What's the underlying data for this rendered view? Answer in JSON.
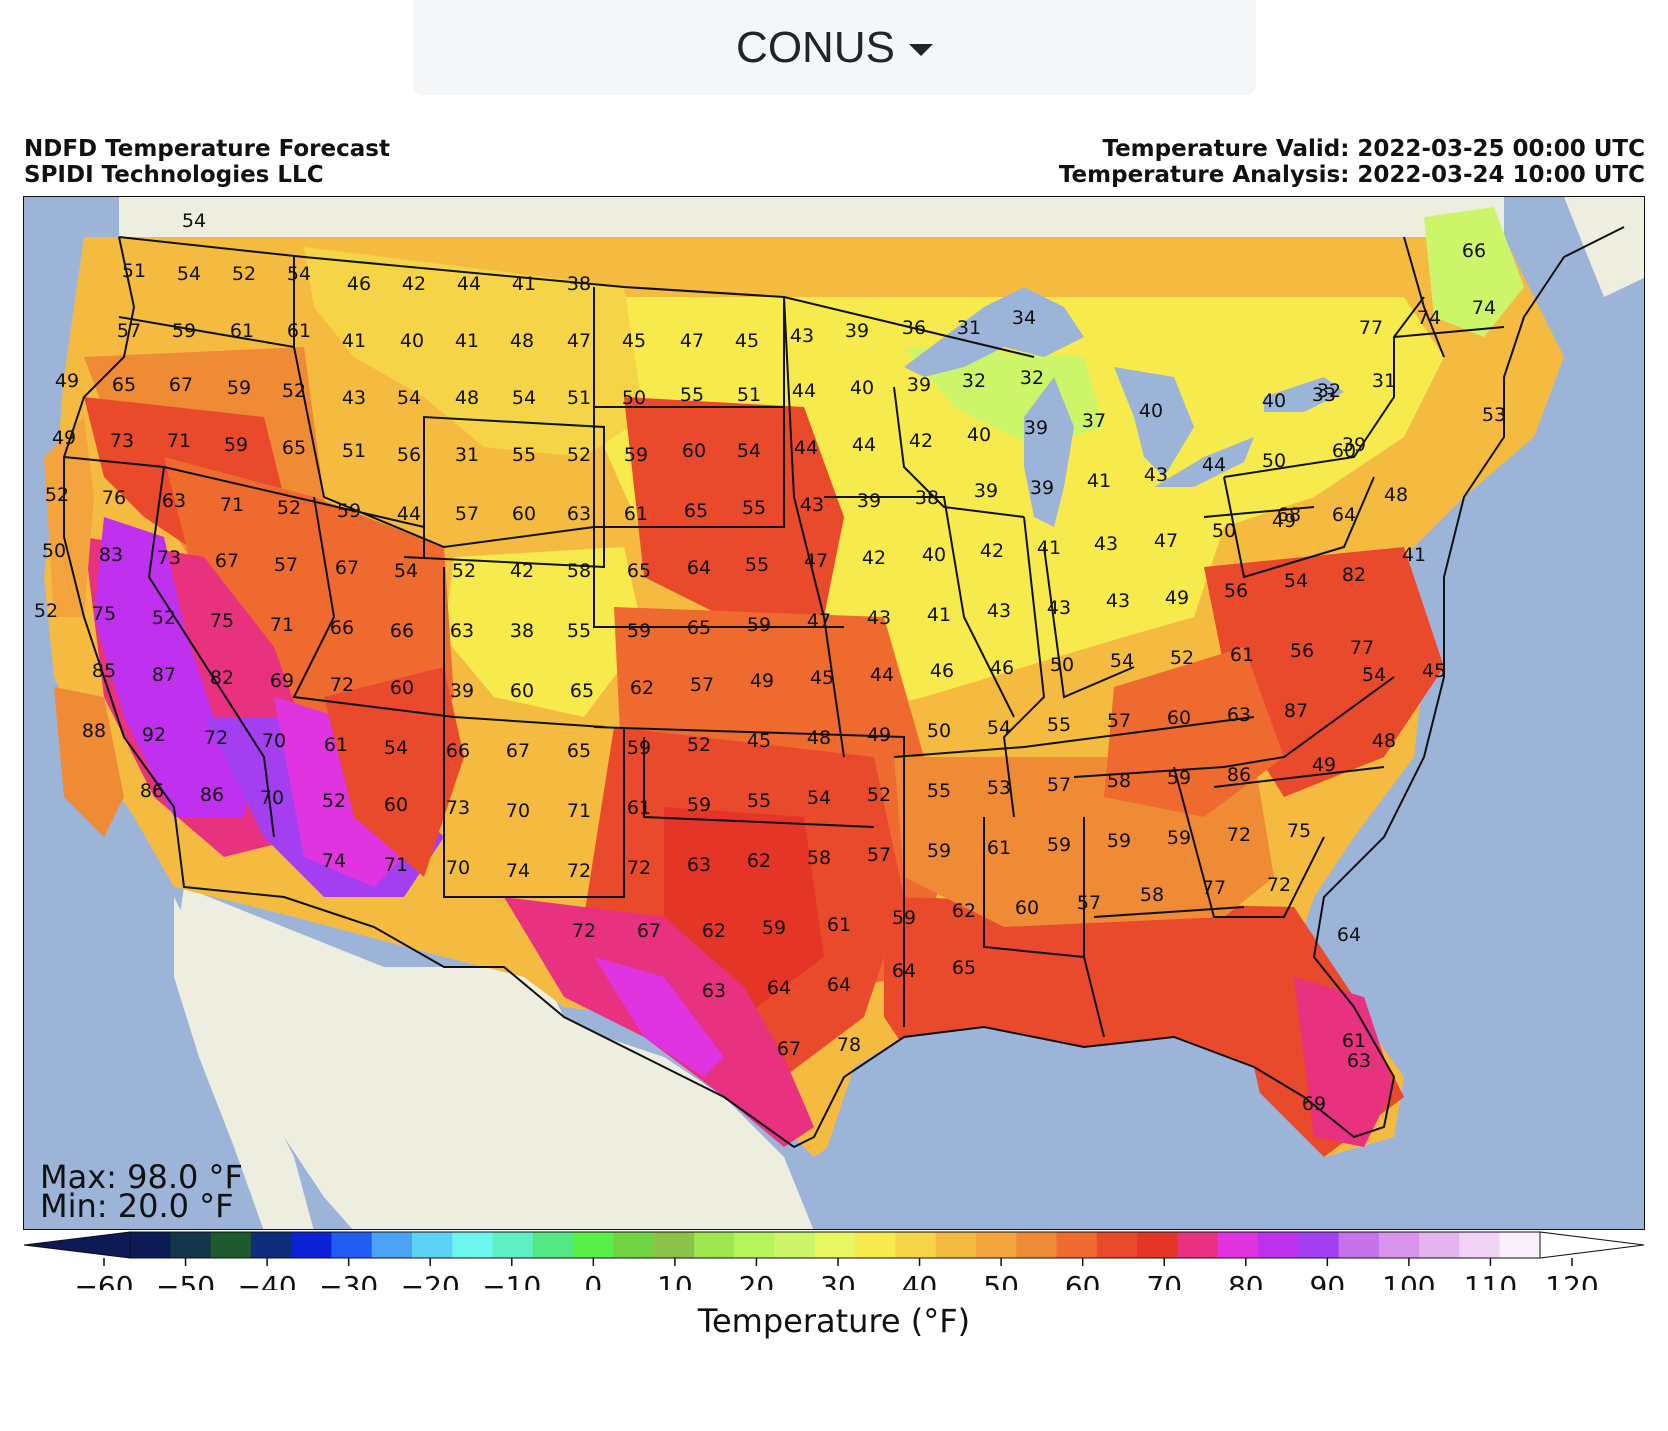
{
  "region_selector": {
    "value": "CONUS"
  },
  "header": {
    "title": "NDFD Temperature Forecast",
    "provider": "SPIDI Technologies LLC",
    "valid": "Temperature Valid: 2022-03-25 00:00 UTC",
    "analysis": "Temperature Analysis: 2022-03-24 10:00 UTC"
  },
  "stats": {
    "max": "Max: 98.0 °F",
    "min": "Min: 20.0 °F"
  },
  "colorbar": {
    "label": "Temperature (°F)",
    "ticks": [
      "−60",
      "−50",
      "−40",
      "−30",
      "−20",
      "−10",
      "0",
      "10",
      "20",
      "30",
      "40",
      "50",
      "60",
      "70",
      "80",
      "90",
      "100",
      "110",
      "120"
    ],
    "min_value": -60,
    "max_value": 120,
    "step": 5,
    "colors": [
      "#0c1a55",
      "#12354a",
      "#1d5a2e",
      "#0e2c7a",
      "#0b22d6",
      "#1f5df5",
      "#4aa3f7",
      "#5cd2f7",
      "#6ef5ee",
      "#5ef0c4",
      "#53e882",
      "#58f047",
      "#6fd43f",
      "#8bc34a",
      "#9ee64d",
      "#b4f55a",
      "#cdf56a",
      "#e8f660",
      "#f7ea4c",
      "#f6d447",
      "#f5bb41",
      "#f3a43c",
      "#ef8a35",
      "#ee6a2f",
      "#e84a2b",
      "#e53527",
      "#e8327f",
      "#df34e0",
      "#bf30ef",
      "#a33ff0",
      "#c672ea",
      "#d893ec",
      "#e6b3f1",
      "#f0d3f5",
      "#faf0fc"
    ]
  },
  "map": {
    "land_color": "#eeeee0",
    "water_color": "#9db4d9",
    "station_values": [
      "54",
      "51",
      "54",
      "52",
      "54",
      "46",
      "42",
      "44",
      "41",
      "38",
      "57",
      "59",
      "61",
      "61",
      "41",
      "40",
      "41",
      "48",
      "47",
      "45",
      "47",
      "45",
      "43",
      "39",
      "36",
      "31",
      "34",
      "49",
      "65",
      "67",
      "59",
      "52",
      "43",
      "54",
      "48",
      "54",
      "51",
      "50",
      "55",
      "51",
      "44",
      "40",
      "39",
      "32",
      "32",
      "49",
      "73",
      "71",
      "59",
      "65",
      "51",
      "56",
      "31",
      "55",
      "52",
      "59",
      "60",
      "54",
      "44",
      "44",
      "42",
      "40",
      "39",
      "37",
      "40",
      "52",
      "76",
      "63",
      "71",
      "52",
      "59",
      "44",
      "57",
      "60",
      "63",
      "61",
      "65",
      "55",
      "43",
      "39",
      "38",
      "39",
      "39",
      "41",
      "43",
      "44",
      "50",
      "50",
      "83",
      "73",
      "67",
      "57",
      "67",
      "54",
      "52",
      "42",
      "58",
      "65",
      "64",
      "55",
      "47",
      "42",
      "40",
      "42",
      "41",
      "43",
      "47",
      "50",
      "49",
      "52",
      "75",
      "52",
      "75",
      "71",
      "66",
      "66",
      "63",
      "38",
      "55",
      "59",
      "65",
      "59",
      "47",
      "43",
      "41",
      "43",
      "43",
      "43",
      "49",
      "56",
      "54",
      "82",
      "85",
      "87",
      "82",
      "69",
      "72",
      "60",
      "39",
      "60",
      "65",
      "62",
      "57",
      "49",
      "45",
      "44",
      "46",
      "46",
      "50",
      "54",
      "52",
      "61",
      "56",
      "77",
      "88",
      "92",
      "72",
      "70",
      "61",
      "54",
      "66",
      "67",
      "65",
      "59",
      "52",
      "45",
      "48",
      "49",
      "50",
      "54",
      "55",
      "57",
      "60",
      "63",
      "87",
      "86",
      "86",
      "70",
      "52",
      "60",
      "73",
      "70",
      "71",
      "61",
      "59",
      "55",
      "54",
      "52",
      "55",
      "53",
      "57",
      "58",
      "59",
      "86",
      "74",
      "71",
      "70",
      "74",
      "72",
      "72",
      "63",
      "62",
      "58",
      "57",
      "59",
      "61",
      "59",
      "59",
      "59",
      "72",
      "75",
      "72",
      "67",
      "62",
      "59",
      "61",
      "59",
      "62",
      "60",
      "57",
      "58",
      "77",
      "72",
      "63",
      "64",
      "64",
      "64",
      "65",
      "64",
      "61",
      "63",
      "67",
      "78",
      "69",
      "66",
      "74",
      "77",
      "74",
      "31",
      "32",
      "40",
      "33",
      "39",
      "48",
      "41",
      "45",
      "48",
      "49",
      "54",
      "53",
      "68",
      "64",
      "60",
      "68",
      "50",
      "50",
      "49"
    ],
    "peak_value": 98.0
  }
}
